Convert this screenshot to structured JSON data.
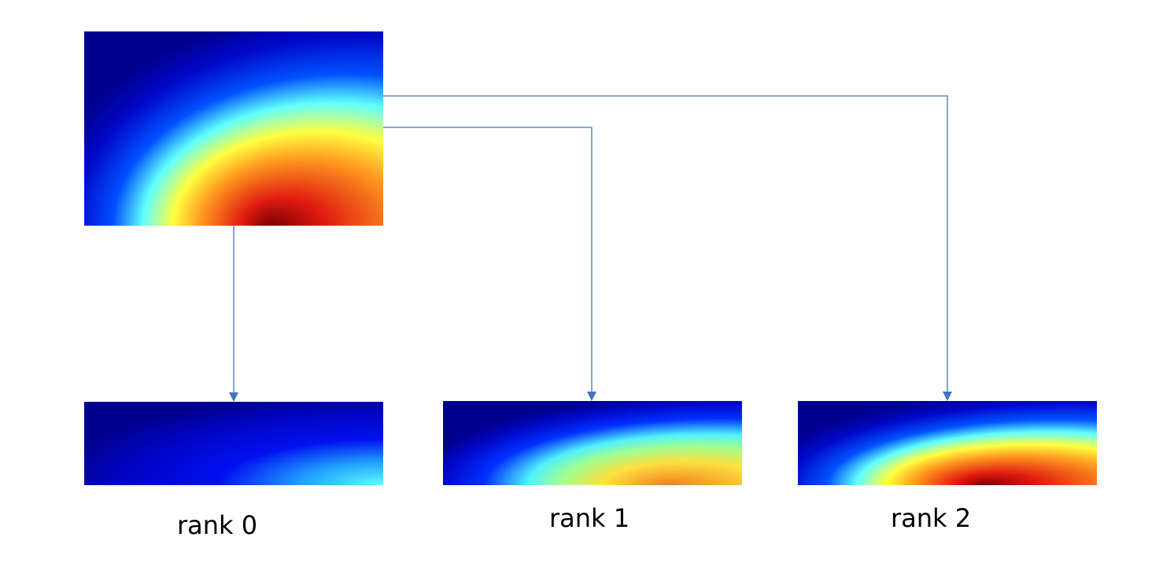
{
  "nodes": [
    {
      "label": "rank 0"
    },
    {
      "label": "rank 1"
    },
    {
      "label": "rank 2"
    }
  ]
}
